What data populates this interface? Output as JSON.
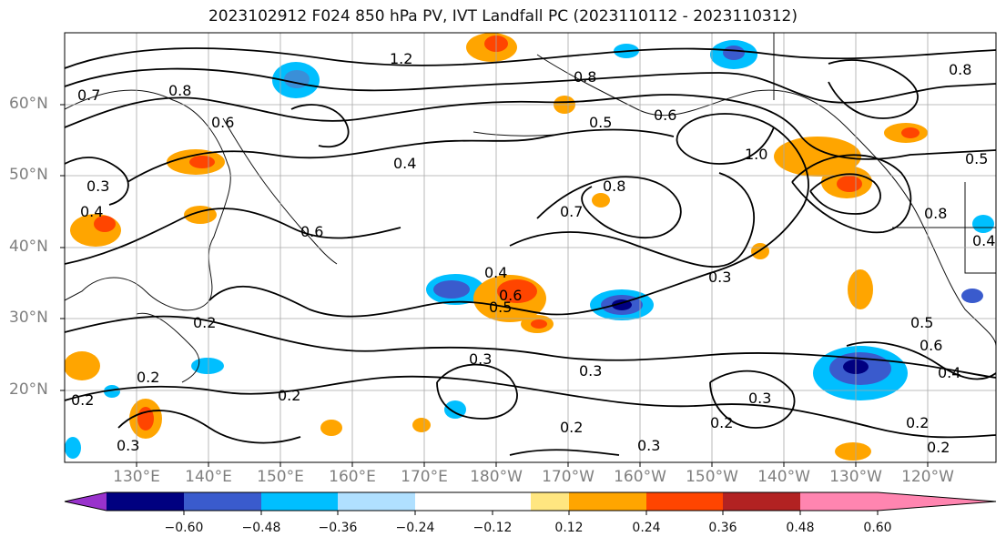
{
  "title": "2023102912 F024 850 hPa PV, IVT Landfall PC (2023110112 - 2023110312)",
  "map": {
    "lat_labels": [
      "60°N",
      "50°N",
      "40°N",
      "30°N",
      "20°N"
    ],
    "lon_labels": [
      "130°E",
      "140°E",
      "150°E",
      "160°E",
      "170°E",
      "180°W",
      "170°W",
      "160°W",
      "150°W",
      "140°W",
      "130°W",
      "120°W"
    ],
    "contour_labels": [
      "1.2",
      "0.8",
      "0.7",
      "0.6",
      "0.8",
      "0.5",
      "0.6",
      "0.4",
      "1.0",
      "0.3",
      "0.4",
      "0.6",
      "0.7",
      "0.8",
      "0.8",
      "0.4",
      "0.6",
      "0.5",
      "0.5",
      "0.2",
      "0.2",
      "0.3",
      "0.3",
      "0.2",
      "0.3",
      "0.3",
      "0.2",
      "0.2",
      "0.3",
      "0.2",
      "0.2",
      "0.5",
      "0.6",
      "0.4",
      "0.2",
      "0.8",
      "0.4",
      "0.3"
    ]
  },
  "colorbar": {
    "colors": [
      "#9932cc",
      "#000080",
      "#3a5bcd",
      "#00bfff",
      "#b0e0ff",
      "#ffffff",
      "#ffffff",
      "#ffe680",
      "#ffa500",
      "#ff4500",
      "#b22222",
      "#ff85b0"
    ],
    "tick_labels": [
      "−0.60",
      "−0.48",
      "−0.36",
      "−0.24",
      "−0.12",
      "0.12",
      "0.24",
      "0.36",
      "0.48",
      "0.60"
    ]
  }
}
